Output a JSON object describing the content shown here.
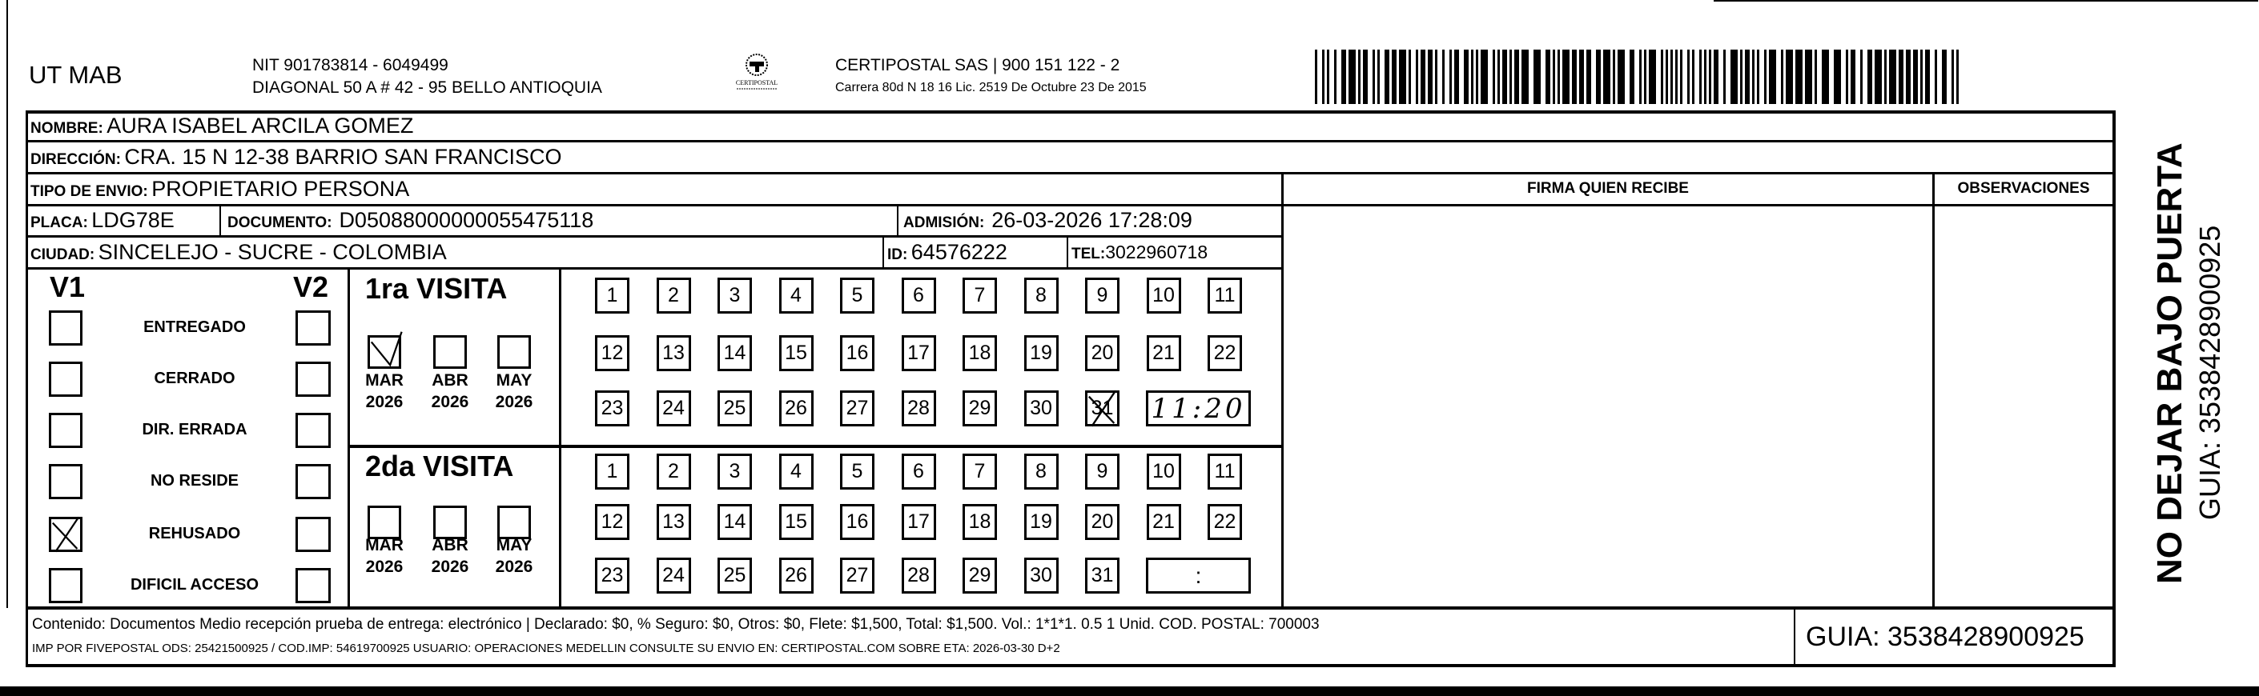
{
  "header": {
    "company": "UT MAB",
    "nit": "NIT 901783814 - 6049499",
    "address": "DIAGONAL 50 A # 42 - 95  BELLO  ANTIOQUIA",
    "logo_text": "CERTIPOSTAL",
    "carrier": "CERTIPOSTAL SAS | 900 151 122 - 2",
    "carrier_address": "Carrera 80d N 18 16  Lic. 2519 De Octubre 23 De 2015"
  },
  "recipient": {
    "nombre_label": "NOMBRE:",
    "nombre": "AURA ISABEL ARCILA GOMEZ",
    "direccion_label": "DIRECCIÓN:",
    "direccion": "CRA. 15 N 12-38 BARRIO SAN FRANCISCO",
    "tipo_label": "TIPO DE ENVIO:",
    "tipo": "PROPIETARIO PERSONA",
    "placa_label": "PLACA:",
    "placa": "LDG78E",
    "documento_label": "DOCUMENTO:",
    "documento": "D05088000000055475118",
    "admision_label": "ADMISIÓN:",
    "admision": "26-03-2026 17:28:09",
    "ciudad_label": "CIUDAD:",
    "ciudad": "SINCELEJO - SUCRE - COLOMBIA",
    "id_label": "ID:",
    "id": "64576222",
    "tel_label": "TEL:",
    "tel": "3022960718"
  },
  "signature": {
    "firma_label": "FIRMA QUIEN RECIBE",
    "observaciones_label": "OBSERVACIONES"
  },
  "status": {
    "v1_label": "V1",
    "v2_label": "V2",
    "items": [
      {
        "label": "ENTREGADO",
        "v1": false,
        "v2": false
      },
      {
        "label": "CERRADO",
        "v1": false,
        "v2": false
      },
      {
        "label": "DIR. ERRADA",
        "v1": false,
        "v2": false
      },
      {
        "label": "NO RESIDE",
        "v1": false,
        "v2": false
      },
      {
        "label": "REHUSADO",
        "v1": true,
        "v2": false
      },
      {
        "label": "DIFICIL ACCESO",
        "v1": false,
        "v2": false
      }
    ]
  },
  "visits": [
    {
      "title": "1ra VISITA",
      "months": [
        {
          "m": "MAR",
          "y": "2026",
          "checked": true
        },
        {
          "m": "ABR",
          "y": "2026",
          "checked": false
        },
        {
          "m": "MAY",
          "y": "2026",
          "checked": false
        }
      ],
      "marked_day": 31,
      "time": "11:20",
      "time_handwritten": true
    },
    {
      "title": "2da VISITA",
      "months": [
        {
          "m": "MAR",
          "y": "2026",
          "checked": false
        },
        {
          "m": "ABR",
          "y": "2026",
          "checked": false
        },
        {
          "m": "MAY",
          "y": "2026",
          "checked": false
        }
      ],
      "marked_day": null,
      "time": ":",
      "time_handwritten": false
    }
  ],
  "footer": {
    "line1": "Contenido: Documentos Medio recepción prueba de entrega: electrónico | Declarado: $0, % Seguro: $0, Otros: $0, Flete: $1,500, Total: $1,500. Vol.: 1*1*1. 0.5  1 Unid. COD. POSTAL: 700003",
    "line2": "IMP POR FIVEPOSTAL ODS: 25421500925 / COD.IMP: 54619700925 USUARIO: OPERACIONES MEDELLIN CONSULTE SU ENVIO EN: CERTIPOSTAL.COM SOBRE ETA: 2026-03-30 D+2",
    "guia": "GUIA: 3538428900925"
  },
  "side": {
    "warning": "NO DEJAR BAJO PUERTA",
    "guia": "GUIA: 3538428900925"
  },
  "icons": {
    "logo": "certipostal-logo",
    "barcode": "barcode"
  }
}
